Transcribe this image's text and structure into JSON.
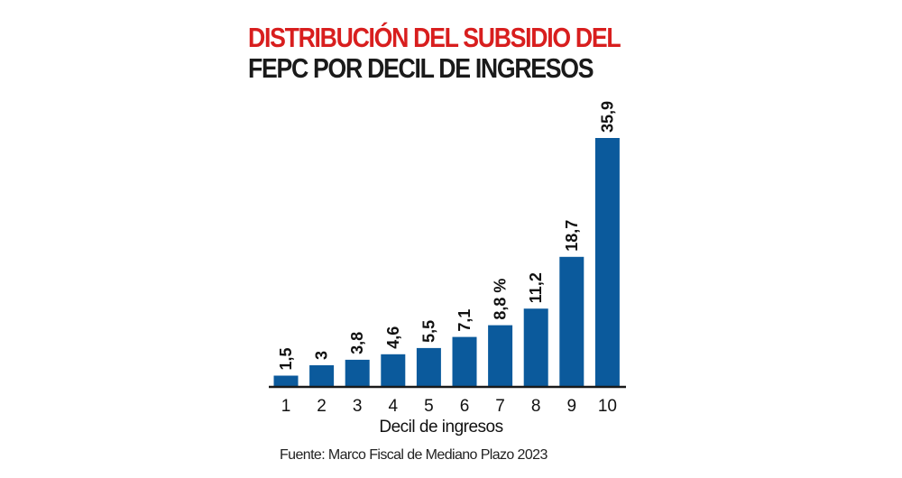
{
  "title": {
    "line1": "DISTRIBUCIÓN DEL SUBSIDIO DEL",
    "line2": "FEPC POR DECIL DE INGRESOS"
  },
  "source": "Fuente: Marco Fiscal de Mediano Plazo 2023",
  "colors": {
    "title_accent": "#d81e1e",
    "bar": "#0b5a9c",
    "axis": "#1a1a1a"
  },
  "chart_data": {
    "type": "bar",
    "title": "DISTRIBUCIÓN DEL SUBSIDIO DEL FEPC POR DECIL DE INGRESOS",
    "xlabel": "Decil de ingresos",
    "ylabel": "",
    "unit": "%",
    "categories": [
      "1",
      "2",
      "3",
      "4",
      "5",
      "6",
      "7",
      "8",
      "9",
      "10"
    ],
    "values": [
      1.5,
      3,
      3.8,
      4.6,
      5.5,
      7.1,
      8.8,
      11.2,
      18.7,
      35.9
    ],
    "value_labels": [
      "1,5",
      "3",
      "3,8",
      "4,6",
      "5,5",
      "7,1",
      "8,8 %",
      "11,2",
      "18,7",
      "35,9"
    ],
    "ylim": [
      0,
      35.9
    ],
    "grid": false,
    "legend": "none"
  }
}
